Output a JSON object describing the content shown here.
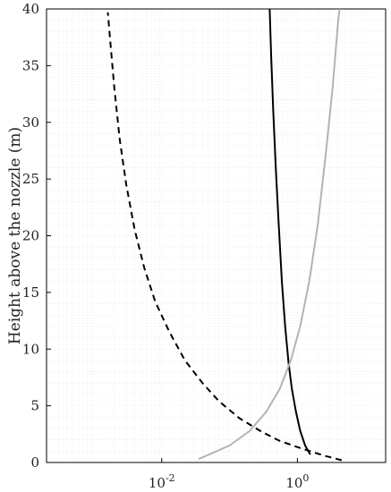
{
  "chart_data": {
    "type": "line",
    "xscale": "log",
    "xlim": [
      0.0002,
      20
    ],
    "ylim": [
      0,
      40
    ],
    "xlabel": "",
    "ylabel": "Height above the nozzle (m)",
    "xticks": [
      {
        "value": 0.01,
        "base": "10",
        "exp": "-2"
      },
      {
        "value": 1,
        "base": "10",
        "exp": "0"
      }
    ],
    "yticks": [
      0,
      5,
      10,
      15,
      20,
      25,
      30,
      35,
      40
    ],
    "grid": true,
    "legend": "none",
    "series": [
      {
        "style": "dashed",
        "color": "#000000",
        "points": [
          [
            4.5,
            0.2
          ],
          [
            2.5,
            0.6
          ],
          [
            1.2,
            1.2
          ],
          [
            0.55,
            1.9
          ],
          [
            0.3,
            2.7
          ],
          [
            0.14,
            3.9
          ],
          [
            0.07,
            5.4
          ],
          [
            0.04,
            7.0
          ],
          [
            0.022,
            9.0
          ],
          [
            0.013,
            11.5
          ],
          [
            0.008,
            14.2
          ],
          [
            0.0055,
            17.2
          ],
          [
            0.004,
            20.5
          ],
          [
            0.003,
            24.5
          ],
          [
            0.0024,
            28.5
          ],
          [
            0.002,
            33.0
          ],
          [
            0.00175,
            37.0
          ],
          [
            0.0016,
            39.7
          ]
        ]
      },
      {
        "style": "solid",
        "color": "#000000",
        "points": [
          [
            1.55,
            0.7
          ],
          [
            1.3,
            1.5
          ],
          [
            1.1,
            2.8
          ],
          [
            0.95,
            4.5
          ],
          [
            0.83,
            6.5
          ],
          [
            0.74,
            8.8
          ],
          [
            0.66,
            12.0
          ],
          [
            0.59,
            16.0
          ],
          [
            0.53,
            21.0
          ],
          [
            0.48,
            26.0
          ],
          [
            0.44,
            31.0
          ],
          [
            0.41,
            36.0
          ],
          [
            0.39,
            40.0
          ]
        ]
      },
      {
        "style": "solid",
        "color": "#b3b3b3",
        "points": [
          [
            0.035,
            0.3
          ],
          [
            0.1,
            1.5
          ],
          [
            0.2,
            2.8
          ],
          [
            0.35,
            4.5
          ],
          [
            0.55,
            6.5
          ],
          [
            0.8,
            9.0
          ],
          [
            1.1,
            12.0
          ],
          [
            1.5,
            16.0
          ],
          [
            2.0,
            21.0
          ],
          [
            2.6,
            27.0
          ],
          [
            3.3,
            33.0
          ],
          [
            4.0,
            39.0
          ],
          [
            4.2,
            40.0
          ]
        ]
      }
    ]
  }
}
